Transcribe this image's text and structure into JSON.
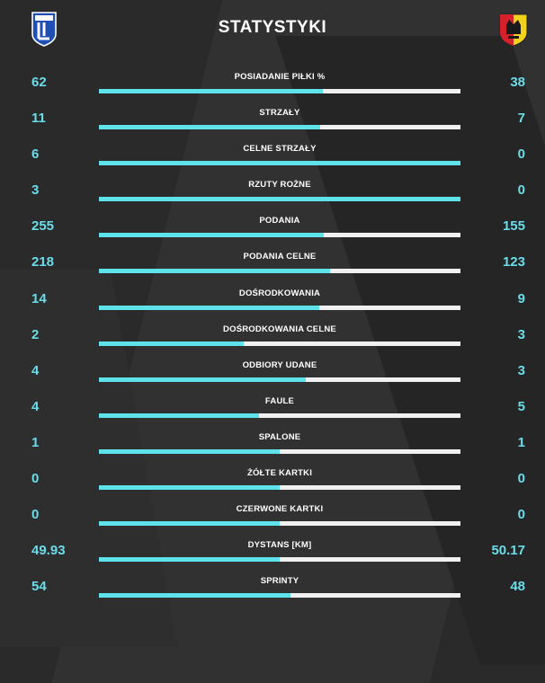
{
  "header": {
    "title": "STATYSTYKI",
    "home_logo_icon": "lech-poznan-crest-icon",
    "away_logo_icon": "korona-kielce-crest-icon"
  },
  "colors": {
    "accent": "#5fe3ea",
    "value_text": "#6bdde9",
    "bar_track": "#f0f0f0",
    "background": "#2a2a2a"
  },
  "stats": [
    {
      "label": "POSIADANIE PIŁKI %",
      "home": "62",
      "away": "38",
      "home_share": 0.62
    },
    {
      "label": "STRZAŁY",
      "home": "11",
      "away": "7",
      "home_share": 0.611
    },
    {
      "label": "CELNE STRZAŁY",
      "home": "6",
      "away": "0",
      "home_share": 1.0
    },
    {
      "label": "RZUTY ROŻNE",
      "home": "3",
      "away": "0",
      "home_share": 1.0
    },
    {
      "label": "PODANIA",
      "home": "255",
      "away": "155",
      "home_share": 0.622
    },
    {
      "label": "PODANIA CELNE",
      "home": "218",
      "away": "123",
      "home_share": 0.639
    },
    {
      "label": "DOŚRODKOWANIA",
      "home": "14",
      "away": "9",
      "home_share": 0.609
    },
    {
      "label": "DOŚRODKOWANIA CELNE",
      "home": "2",
      "away": "3",
      "home_share": 0.4
    },
    {
      "label": "ODBIORY UDANE",
      "home": "4",
      "away": "3",
      "home_share": 0.571
    },
    {
      "label": "FAULE",
      "home": "4",
      "away": "5",
      "home_share": 0.444
    },
    {
      "label": "SPALONE",
      "home": "1",
      "away": "1",
      "home_share": 0.5
    },
    {
      "label": "ŻÓŁTE KARTKI",
      "home": "0",
      "away": "0",
      "home_share": 0.5
    },
    {
      "label": "CZERWONE KARTKI",
      "home": "0",
      "away": "0",
      "home_share": 0.5
    },
    {
      "label": "DYSTANS [KM]",
      "home": "49.93",
      "away": "50.17",
      "home_share": 0.499
    },
    {
      "label": "SPRINTY",
      "home": "54",
      "away": "48",
      "home_share": 0.529
    }
  ]
}
